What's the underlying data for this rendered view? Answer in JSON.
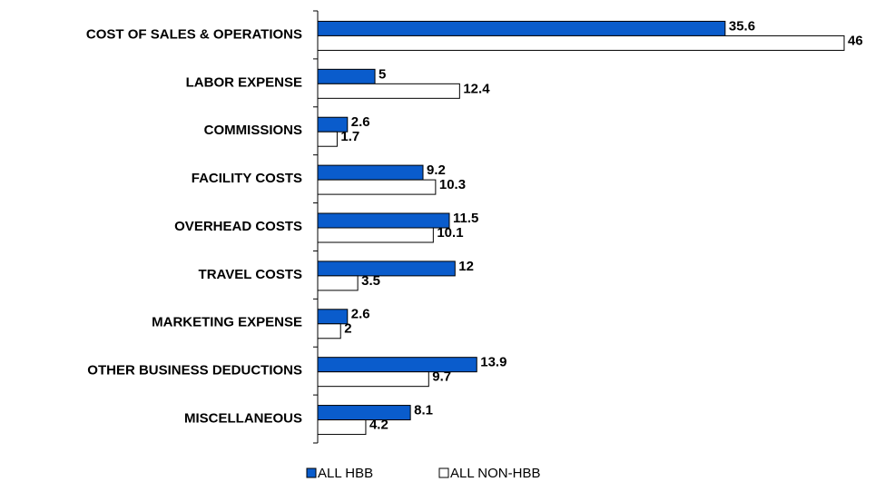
{
  "chart_data": {
    "type": "hbar",
    "categories": [
      "COST OF SALES & OPERATIONS",
      "LABOR EXPENSE",
      "COMMISSIONS",
      "FACILITY COSTS",
      "OVERHEAD COSTS",
      "TRAVEL COSTS",
      "MARKETING EXPENSE",
      "OTHER BUSINESS DEDUCTIONS",
      "MISCELLANEOUS"
    ],
    "series": [
      {
        "name": "ALL HBB",
        "color": "#0a5ccc",
        "values": [
          35.6,
          5,
          2.6,
          9.2,
          11.5,
          12,
          2.6,
          13.9,
          8.1
        ]
      },
      {
        "name": "ALL NON-HBB",
        "color": "#ffffff",
        "values": [
          46,
          12.4,
          1.7,
          10.3,
          10.1,
          3.5,
          2,
          9.7,
          4.2
        ]
      }
    ],
    "xlim": [
      0,
      46
    ],
    "legend": "bottom"
  }
}
